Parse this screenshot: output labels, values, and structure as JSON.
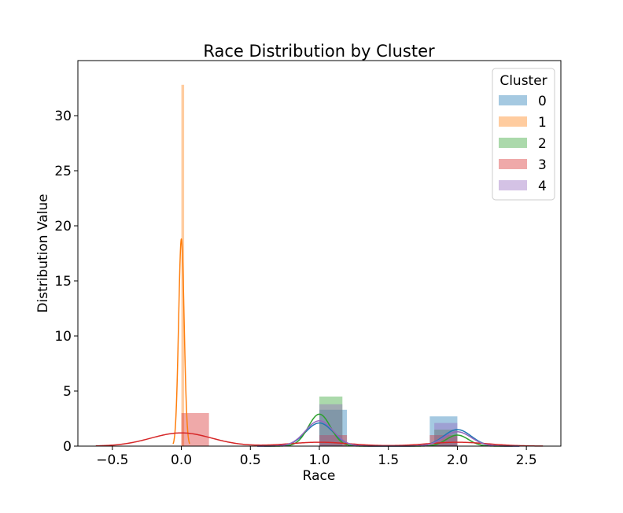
{
  "chart_data": {
    "type": "histogram",
    "title": "Race Distribution by Cluster",
    "xlabel": "Race",
    "ylabel": "Distribution Value",
    "xlim": [
      -0.75,
      2.75
    ],
    "ylim": [
      0,
      35
    ],
    "xticks": [
      -0.5,
      0.0,
      0.5,
      1.0,
      1.5,
      2.0,
      2.5
    ],
    "xtick_labels": [
      "−0.5",
      "0.0",
      "0.5",
      "1.0",
      "1.5",
      "2.0",
      "2.5"
    ],
    "yticks": [
      0,
      5,
      10,
      15,
      20,
      25,
      30
    ],
    "ytick_labels": [
      "0",
      "5",
      "10",
      "15",
      "20",
      "25",
      "30"
    ],
    "grid": false,
    "legend": {
      "title": "Cluster",
      "placement": "top-right"
    },
    "series": [
      {
        "name": "0",
        "color": "#1f77b4",
        "bars": [
          {
            "x0": 1.0,
            "x1": 1.2,
            "height": 3.3
          },
          {
            "x0": 1.8,
            "x1": 2.0,
            "height": 2.7
          }
        ],
        "kde": {
          "peaks": [
            {
              "mu": 1.0,
              "sigma": 0.1,
              "height": 2.1
            },
            {
              "mu": 2.0,
              "sigma": 0.1,
              "height": 1.5
            }
          ],
          "range": [
            0.55,
            2.45
          ]
        }
      },
      {
        "name": "1",
        "color": "#ff7f0e",
        "bars": [
          {
            "x0": 0.0,
            "x1": 0.02,
            "height": 32.8
          }
        ],
        "kde": {
          "peaks": [
            {
              "mu": 0.0,
              "sigma": 0.02,
              "height": 18.8
            }
          ],
          "range": [
            -0.06,
            0.06
          ]
        }
      },
      {
        "name": "2",
        "color": "#2ca02c",
        "bars": [
          {
            "x0": 1.0,
            "x1": 1.167,
            "height": 4.5
          },
          {
            "x0": 1.833,
            "x1": 2.0,
            "height": 1.5
          }
        ],
        "kde": {
          "peaks": [
            {
              "mu": 1.0,
              "sigma": 0.08,
              "height": 2.9
            },
            {
              "mu": 2.0,
              "sigma": 0.08,
              "height": 1.0
            }
          ],
          "range": [
            0.6,
            2.4
          ]
        }
      },
      {
        "name": "3",
        "color": "#d62728",
        "bars": [
          {
            "x0": 0.0,
            "x1": 0.2,
            "height": 3.0
          },
          {
            "x0": 1.0,
            "x1": 1.2,
            "height": 1.0
          },
          {
            "x0": 1.8,
            "x1": 2.0,
            "height": 1.0
          }
        ],
        "kde": {
          "peaks": [
            {
              "mu": 0.0,
              "sigma": 0.22,
              "height": 1.2
            },
            {
              "mu": 1.0,
              "sigma": 0.22,
              "height": 0.35
            },
            {
              "mu": 2.0,
              "sigma": 0.22,
              "height": 0.35
            }
          ],
          "range": [
            -0.62,
            2.62
          ]
        }
      },
      {
        "name": "4",
        "color": "#9467bd",
        "bars": [
          {
            "x0": 1.0,
            "x1": 1.167,
            "height": 3.8
          },
          {
            "x0": 1.833,
            "x1": 2.0,
            "height": 2.1
          }
        ],
        "kde": {
          "peaks": [
            {
              "mu": 1.0,
              "sigma": 0.1,
              "height": 2.3
            },
            {
              "mu": 2.0,
              "sigma": 0.1,
              "height": 1.3
            }
          ],
          "range": [
            0.55,
            2.45
          ]
        }
      }
    ]
  }
}
